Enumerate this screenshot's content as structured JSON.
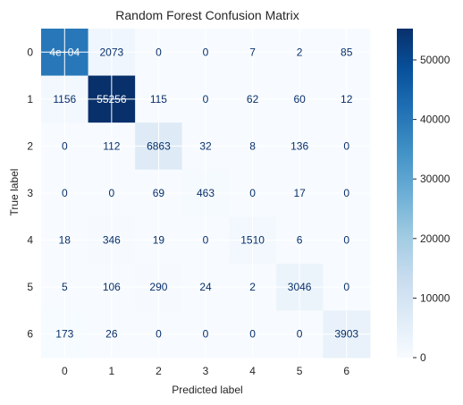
{
  "chart_data": {
    "type": "heatmap",
    "title": "Random Forest Confusion Matrix",
    "xlabel": "Predicted label",
    "ylabel": "True label",
    "x_tick_labels": [
      "0",
      "1",
      "2",
      "3",
      "4",
      "5",
      "6"
    ],
    "y_tick_labels": [
      "0",
      "1",
      "2",
      "3",
      "4",
      "5",
      "6"
    ],
    "values": [
      [
        40000,
        2073,
        0,
        0,
        7,
        2,
        85
      ],
      [
        1156,
        55256,
        115,
        0,
        62,
        60,
        12
      ],
      [
        0,
        112,
        6863,
        32,
        8,
        136,
        0
      ],
      [
        0,
        0,
        69,
        463,
        0,
        17,
        0
      ],
      [
        18,
        346,
        19,
        0,
        1510,
        6,
        0
      ],
      [
        5,
        106,
        290,
        24,
        2,
        3046,
        0
      ],
      [
        173,
        26,
        0,
        0,
        0,
        0,
        3903
      ]
    ],
    "cell_labels": [
      [
        "4e+04",
        "2073",
        "0",
        "0",
        "7",
        "2",
        "85"
      ],
      [
        "1156",
        "55256",
        "115",
        "0",
        "62",
        "60",
        "12"
      ],
      [
        "0",
        "112",
        "6863",
        "32",
        "8",
        "136",
        "0"
      ],
      [
        "0",
        "0",
        "69",
        "463",
        "0",
        "17",
        "0"
      ],
      [
        "18",
        "346",
        "19",
        "0",
        "1510",
        "6",
        "0"
      ],
      [
        "5",
        "106",
        "290",
        "24",
        "2",
        "3046",
        "0"
      ],
      [
        "173",
        "26",
        "0",
        "0",
        "0",
        "0",
        "3903"
      ]
    ],
    "colormap": "Blues",
    "color_range": [
      0,
      55256
    ],
    "colorbar_ticks": [
      0,
      10000,
      20000,
      30000,
      40000,
      50000
    ],
    "colorbar_tick_labels": [
      "0",
      "10000",
      "20000",
      "30000",
      "40000",
      "50000"
    ],
    "grid": true
  },
  "colors": {
    "low": "#f7fbff",
    "high": "#08306b",
    "text_light": "#ffffff",
    "text_dark": "#08306b"
  }
}
